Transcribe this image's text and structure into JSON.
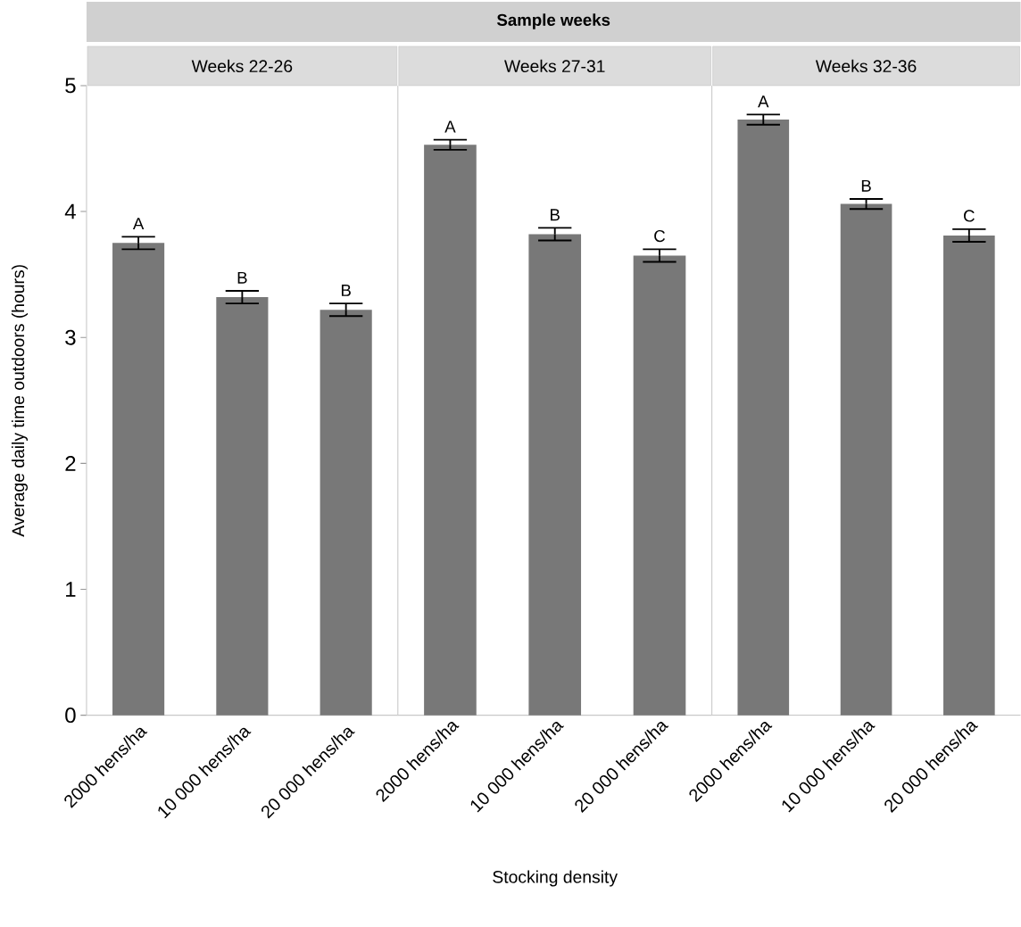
{
  "chart_data": [
    {
      "type": "bar",
      "subtitle": "Weeks 22-26",
      "ylabel": "Average daily time outdoors (hours)",
      "categories": [
        "2000 hens/ha",
        "10 000 hens/ha",
        "20 000 hens/ha"
      ],
      "values": [
        3.75,
        3.32,
        3.22
      ],
      "errors": [
        0.05,
        0.05,
        0.05
      ],
      "color": "#787878",
      "ylim": [
        0,
        5
      ],
      "yticks": [
        0,
        1,
        2,
        3,
        4,
        5
      ],
      "annotations": [
        {
          "text": "A",
          "x": "2000 hens/ha",
          "y": 3.75
        },
        {
          "text": "B",
          "x": "10 000 hens/ha",
          "y": 3.32
        },
        {
          "text": "B",
          "x": "20 000 hens/ha",
          "y": 3.22
        }
      ]
    },
    {
      "type": "bar",
      "title": "Sample weeks",
      "subtitle": "Weeks 27-31",
      "xlabel": "Stocking density",
      "categories": [
        "2000 hens/ha",
        "10 000 hens/ha",
        "20 000 hens/ha"
      ],
      "values": [
        4.53,
        3.82,
        3.65
      ],
      "errors": [
        0.04,
        0.05,
        0.05
      ],
      "color": "#787878",
      "ylim": [
        0,
        5
      ],
      "yticks": [
        0,
        1,
        2,
        3,
        4,
        5
      ],
      "tick_labels": "x",
      "annotations": [
        {
          "text": "A",
          "x": "2000 hens/ha",
          "y": 4.53
        },
        {
          "text": "B",
          "x": "10 000 hens/ha",
          "y": 3.82
        },
        {
          "text": "C",
          "x": "20 000 hens/ha",
          "y": 3.65
        }
      ]
    },
    {
      "type": "bar",
      "subtitle": "Weeks 32-36",
      "categories": [
        "2000 hens/ha",
        "10 000 hens/ha",
        "20 000 hens/ha"
      ],
      "values": [
        4.73,
        4.06,
        3.81
      ],
      "errors": [
        0.04,
        0.04,
        0.05
      ],
      "color": "#787878",
      "ylim": [
        0,
        5
      ],
      "yticks": [
        0,
        1,
        2,
        3,
        4,
        5
      ],
      "tick_labels": "x",
      "annotations": [
        {
          "text": "A",
          "x": "2000 hens/ha",
          "y": 4.73
        },
        {
          "text": "B",
          "x": "10 000 hens/ha",
          "y": 4.06
        },
        {
          "text": "C",
          "x": "20 000 hens/ha",
          "y": 3.81
        }
      ]
    }
  ]
}
